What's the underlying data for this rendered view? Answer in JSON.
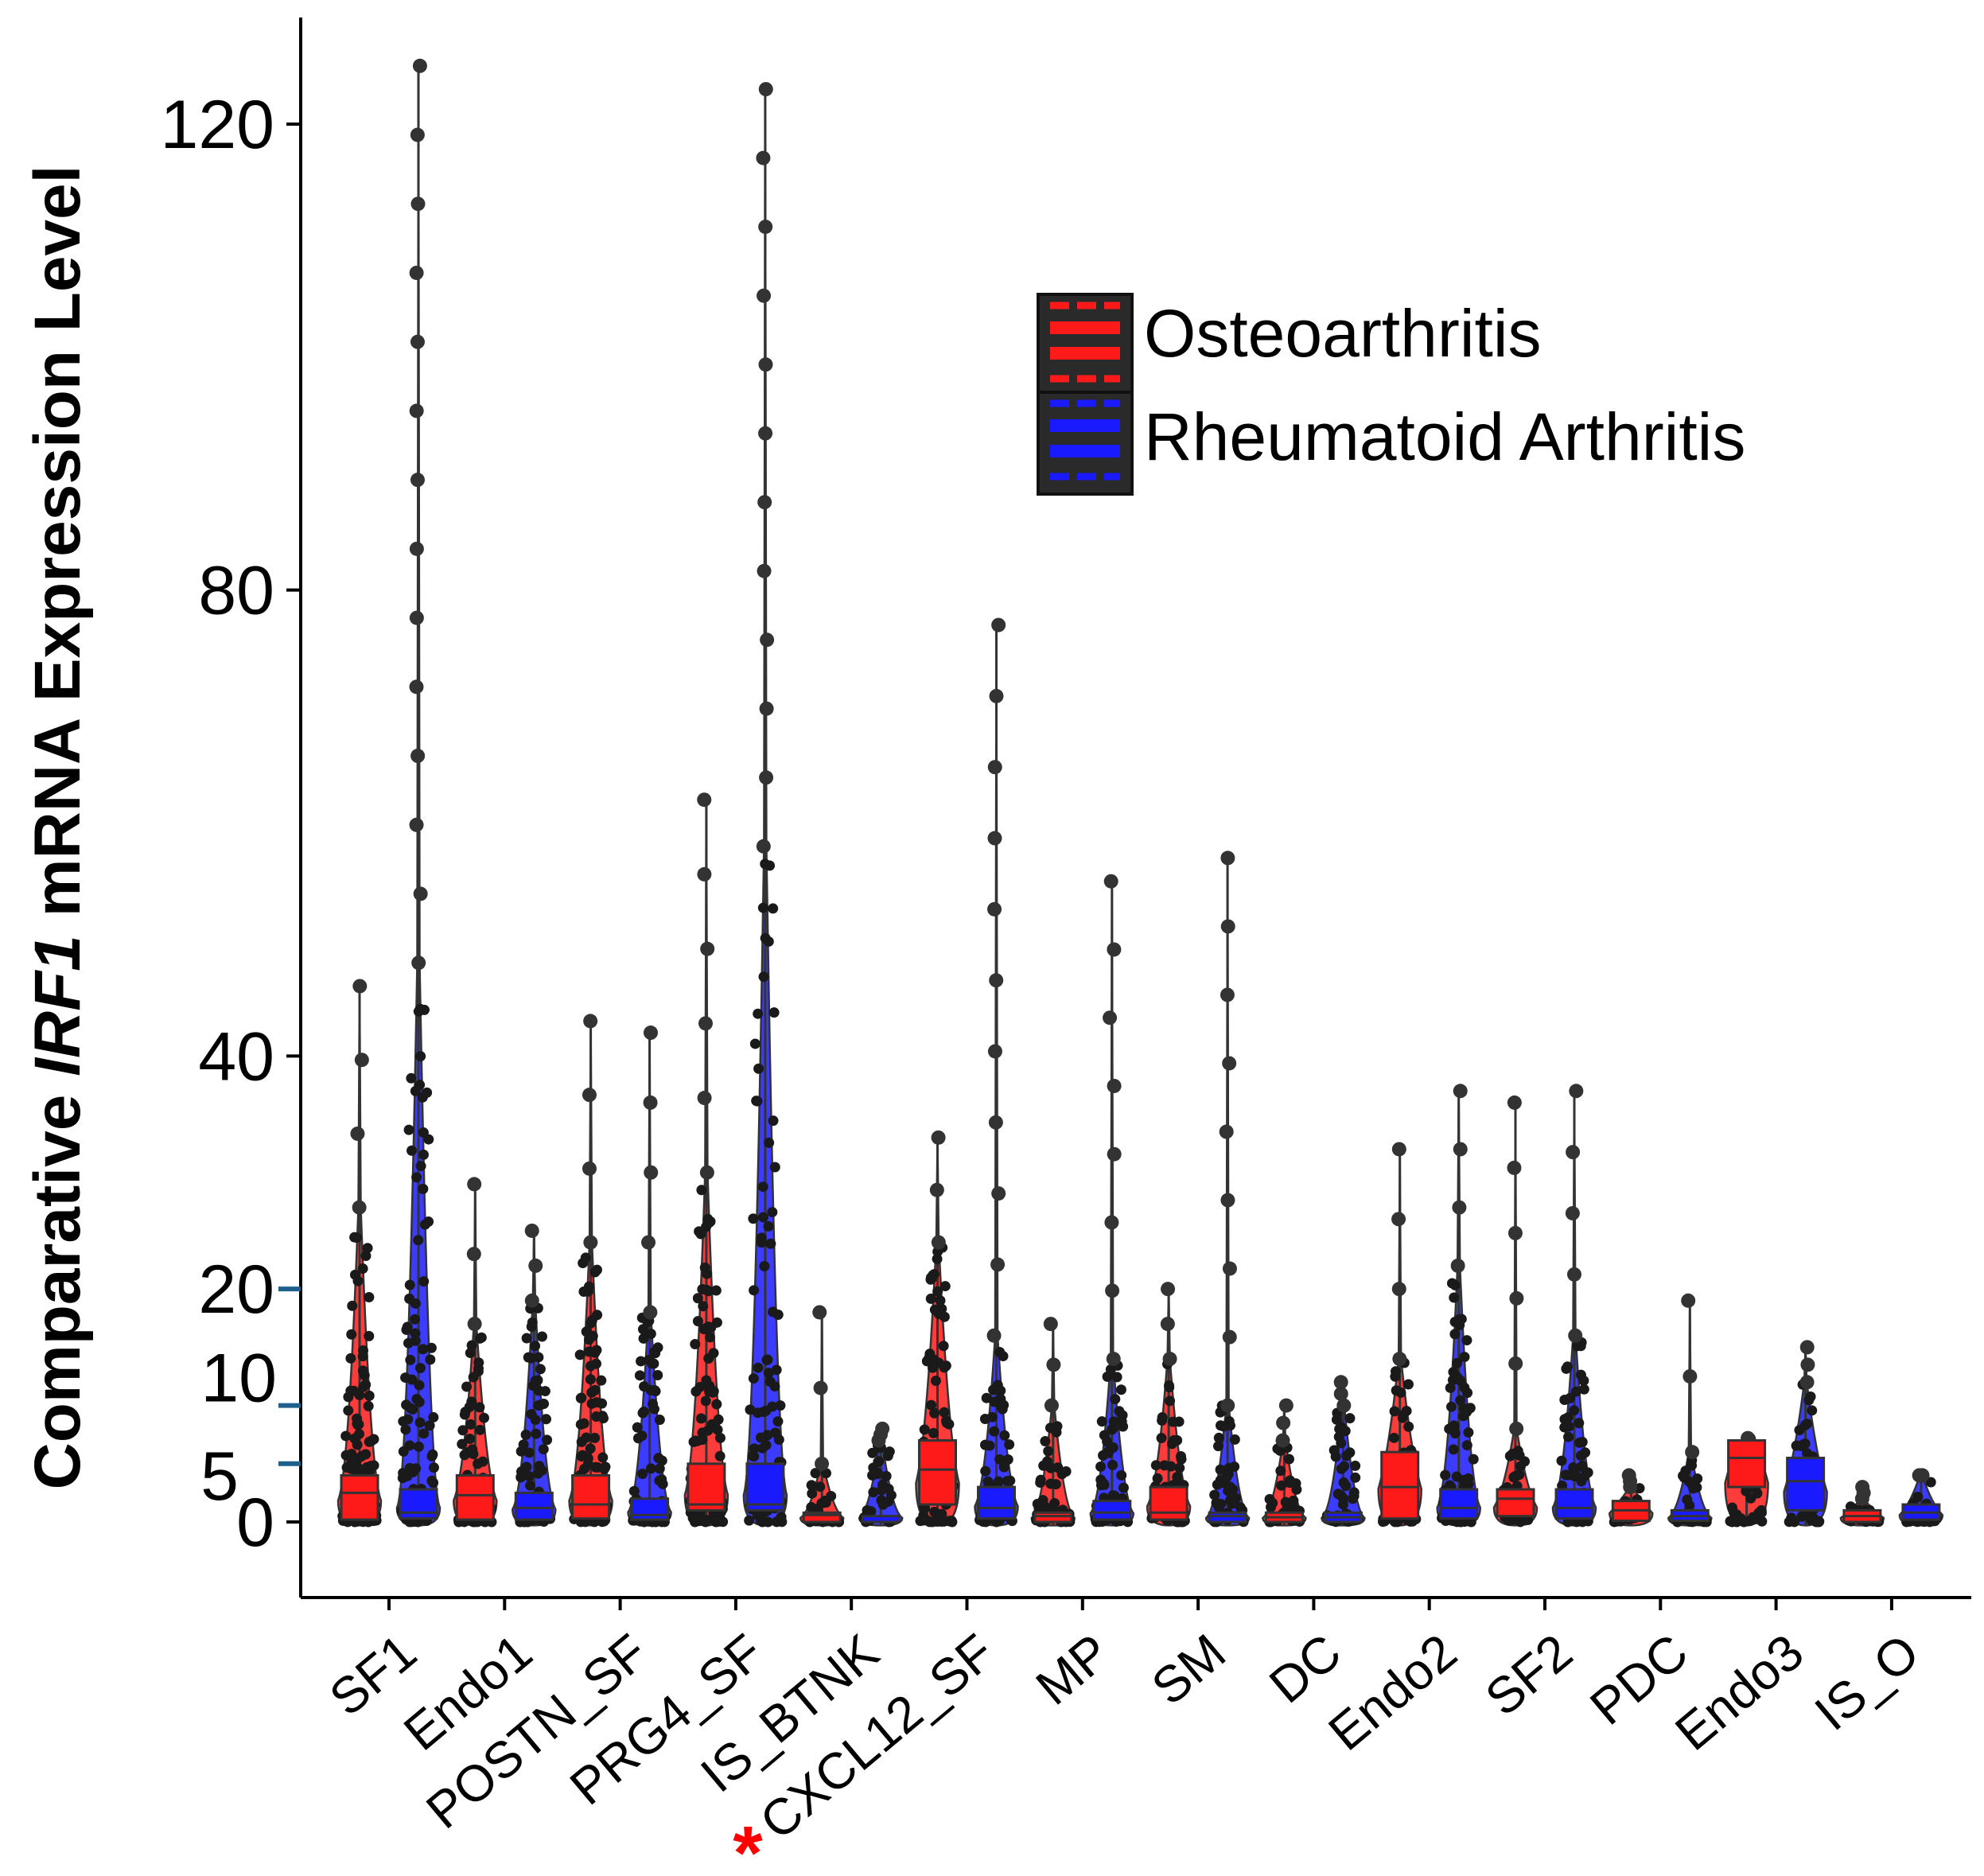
{
  "chart_data": {
    "type": "violin-box",
    "title": "",
    "xlabel": "",
    "ylabel_parts": [
      "Comparative ",
      "IRF1",
      " mRNA Expression Level"
    ],
    "ylim": [
      -8,
      128
    ],
    "yticks": [
      {
        "value": 0,
        "label": "0",
        "marker": false
      },
      {
        "value": 5,
        "label": "5",
        "marker": true
      },
      {
        "value": 10,
        "label": "10",
        "marker": true
      },
      {
        "value": 20,
        "label": "20",
        "marker": true
      },
      {
        "value": 40,
        "label": "40",
        "marker": false
      },
      {
        "value": 80,
        "label": "80",
        "marker": false
      },
      {
        "value": 120,
        "label": "120",
        "marker": false
      }
    ],
    "categories": [
      "SF1",
      "Endo1",
      "POSTN_SF",
      "PRG4_SF",
      "IS_BTNK",
      "CXCL12_SF",
      "MP",
      "SM",
      "DC",
      "Endo2",
      "SF2",
      "PDC",
      "Endo3",
      "IS_O"
    ],
    "highlight": {
      "category": "CXCL12_SF",
      "mark": "*",
      "color": "#ff0000"
    },
    "legend": {
      "position": "top-right",
      "entries": [
        {
          "label": "Osteoarthritis",
          "color": "#ff1a1a"
        },
        {
          "label": "Rheumatoid Arthritis",
          "color": "#1a1aff"
        }
      ]
    },
    "series": [
      {
        "name": "Osteoarthritis",
        "color": "#ff1a1a",
        "groups": [
          {
            "q1": 0.2,
            "median": 2.5,
            "q3": 4.0,
            "max": 46,
            "dense_to": 27
          },
          {
            "q1": 0.2,
            "median": 2.3,
            "q3": 4.0,
            "max": 29,
            "dense_to": 17
          },
          {
            "q1": 0.3,
            "median": 1.5,
            "q3": 4.0,
            "max": 43,
            "dense_to": 24
          },
          {
            "q1": 1.0,
            "median": 1.5,
            "q3": 5.0,
            "max": 62,
            "dense_to": 30
          },
          {
            "q1": 0.0,
            "median": 0.6,
            "q3": 0.8,
            "max": 18,
            "dense_to": 5
          },
          {
            "q1": 1.5,
            "median": 4.5,
            "q3": 7.0,
            "max": 33,
            "dense_to": 24
          },
          {
            "q1": 0.0,
            "median": 0.5,
            "q3": 0.8,
            "max": 17,
            "dense_to": 10
          },
          {
            "q1": 0.2,
            "median": 0.8,
            "q3": 3.0,
            "max": 20,
            "dense_to": 14
          },
          {
            "q1": 0.0,
            "median": 0.4,
            "q3": 0.8,
            "max": 10,
            "dense_to": 7
          },
          {
            "q1": 0.3,
            "median": 3.0,
            "q3": 6.0,
            "max": 32,
            "dense_to": 14
          },
          {
            "q1": 0.5,
            "median": 2.0,
            "q3": 2.8,
            "max": 36,
            "dense_to": 8
          },
          {
            "q1": 0.1,
            "median": 1.0,
            "q3": 1.8,
            "max": 4,
            "dense_to": 3
          },
          {
            "q1": 3.0,
            "median": 5.5,
            "q3": 7.0,
            "max": 7.2,
            "dense_to": 7
          },
          {
            "q1": 0.0,
            "median": 0.5,
            "q3": 1.0,
            "max": 3,
            "dense_to": 2
          }
        ]
      },
      {
        "name": "Rheumatoid Arthritis",
        "color": "#1a1aff",
        "groups": [
          {
            "q1": 0.3,
            "median": 0.8,
            "q3": 2.8,
            "max": 125,
            "dense_to": 48
          },
          {
            "q1": 0.2,
            "median": 1.2,
            "q3": 2.5,
            "max": 25,
            "dense_to": 19
          },
          {
            "q1": 0.2,
            "median": 0.6,
            "q3": 2.0,
            "max": 42,
            "dense_to": 18
          },
          {
            "q1": 1.0,
            "median": 1.5,
            "q3": 5.0,
            "max": 123,
            "dense_to": 58
          },
          {
            "q1": 0.0,
            "median": 0.0,
            "q3": 0.5,
            "max": 8,
            "dense_to": 7
          },
          {
            "q1": 0.3,
            "median": 1.2,
            "q3": 3.0,
            "max": 77,
            "dense_to": 16
          },
          {
            "q1": 0.2,
            "median": 0.8,
            "q3": 1.8,
            "max": 55,
            "dense_to": 14
          },
          {
            "q1": 0.0,
            "median": 0.5,
            "q3": 0.8,
            "max": 57,
            "dense_to": 10
          },
          {
            "q1": 0.0,
            "median": 0.4,
            "q3": 0.8,
            "max": 12,
            "dense_to": 10
          },
          {
            "q1": 0.3,
            "median": 1.2,
            "q3": 2.8,
            "max": 37,
            "dense_to": 22
          },
          {
            "q1": 0.3,
            "median": 1.2,
            "q3": 2.8,
            "max": 37,
            "dense_to": 16
          },
          {
            "q1": 0.1,
            "median": 0.5,
            "q3": 1.0,
            "max": 19,
            "dense_to": 6
          },
          {
            "q1": 1.0,
            "median": 3.5,
            "q3": 5.5,
            "max": 15,
            "dense_to": 12
          },
          {
            "q1": 0.2,
            "median": 0.8,
            "q3": 1.5,
            "max": 4,
            "dense_to": 4
          }
        ]
      }
    ]
  }
}
